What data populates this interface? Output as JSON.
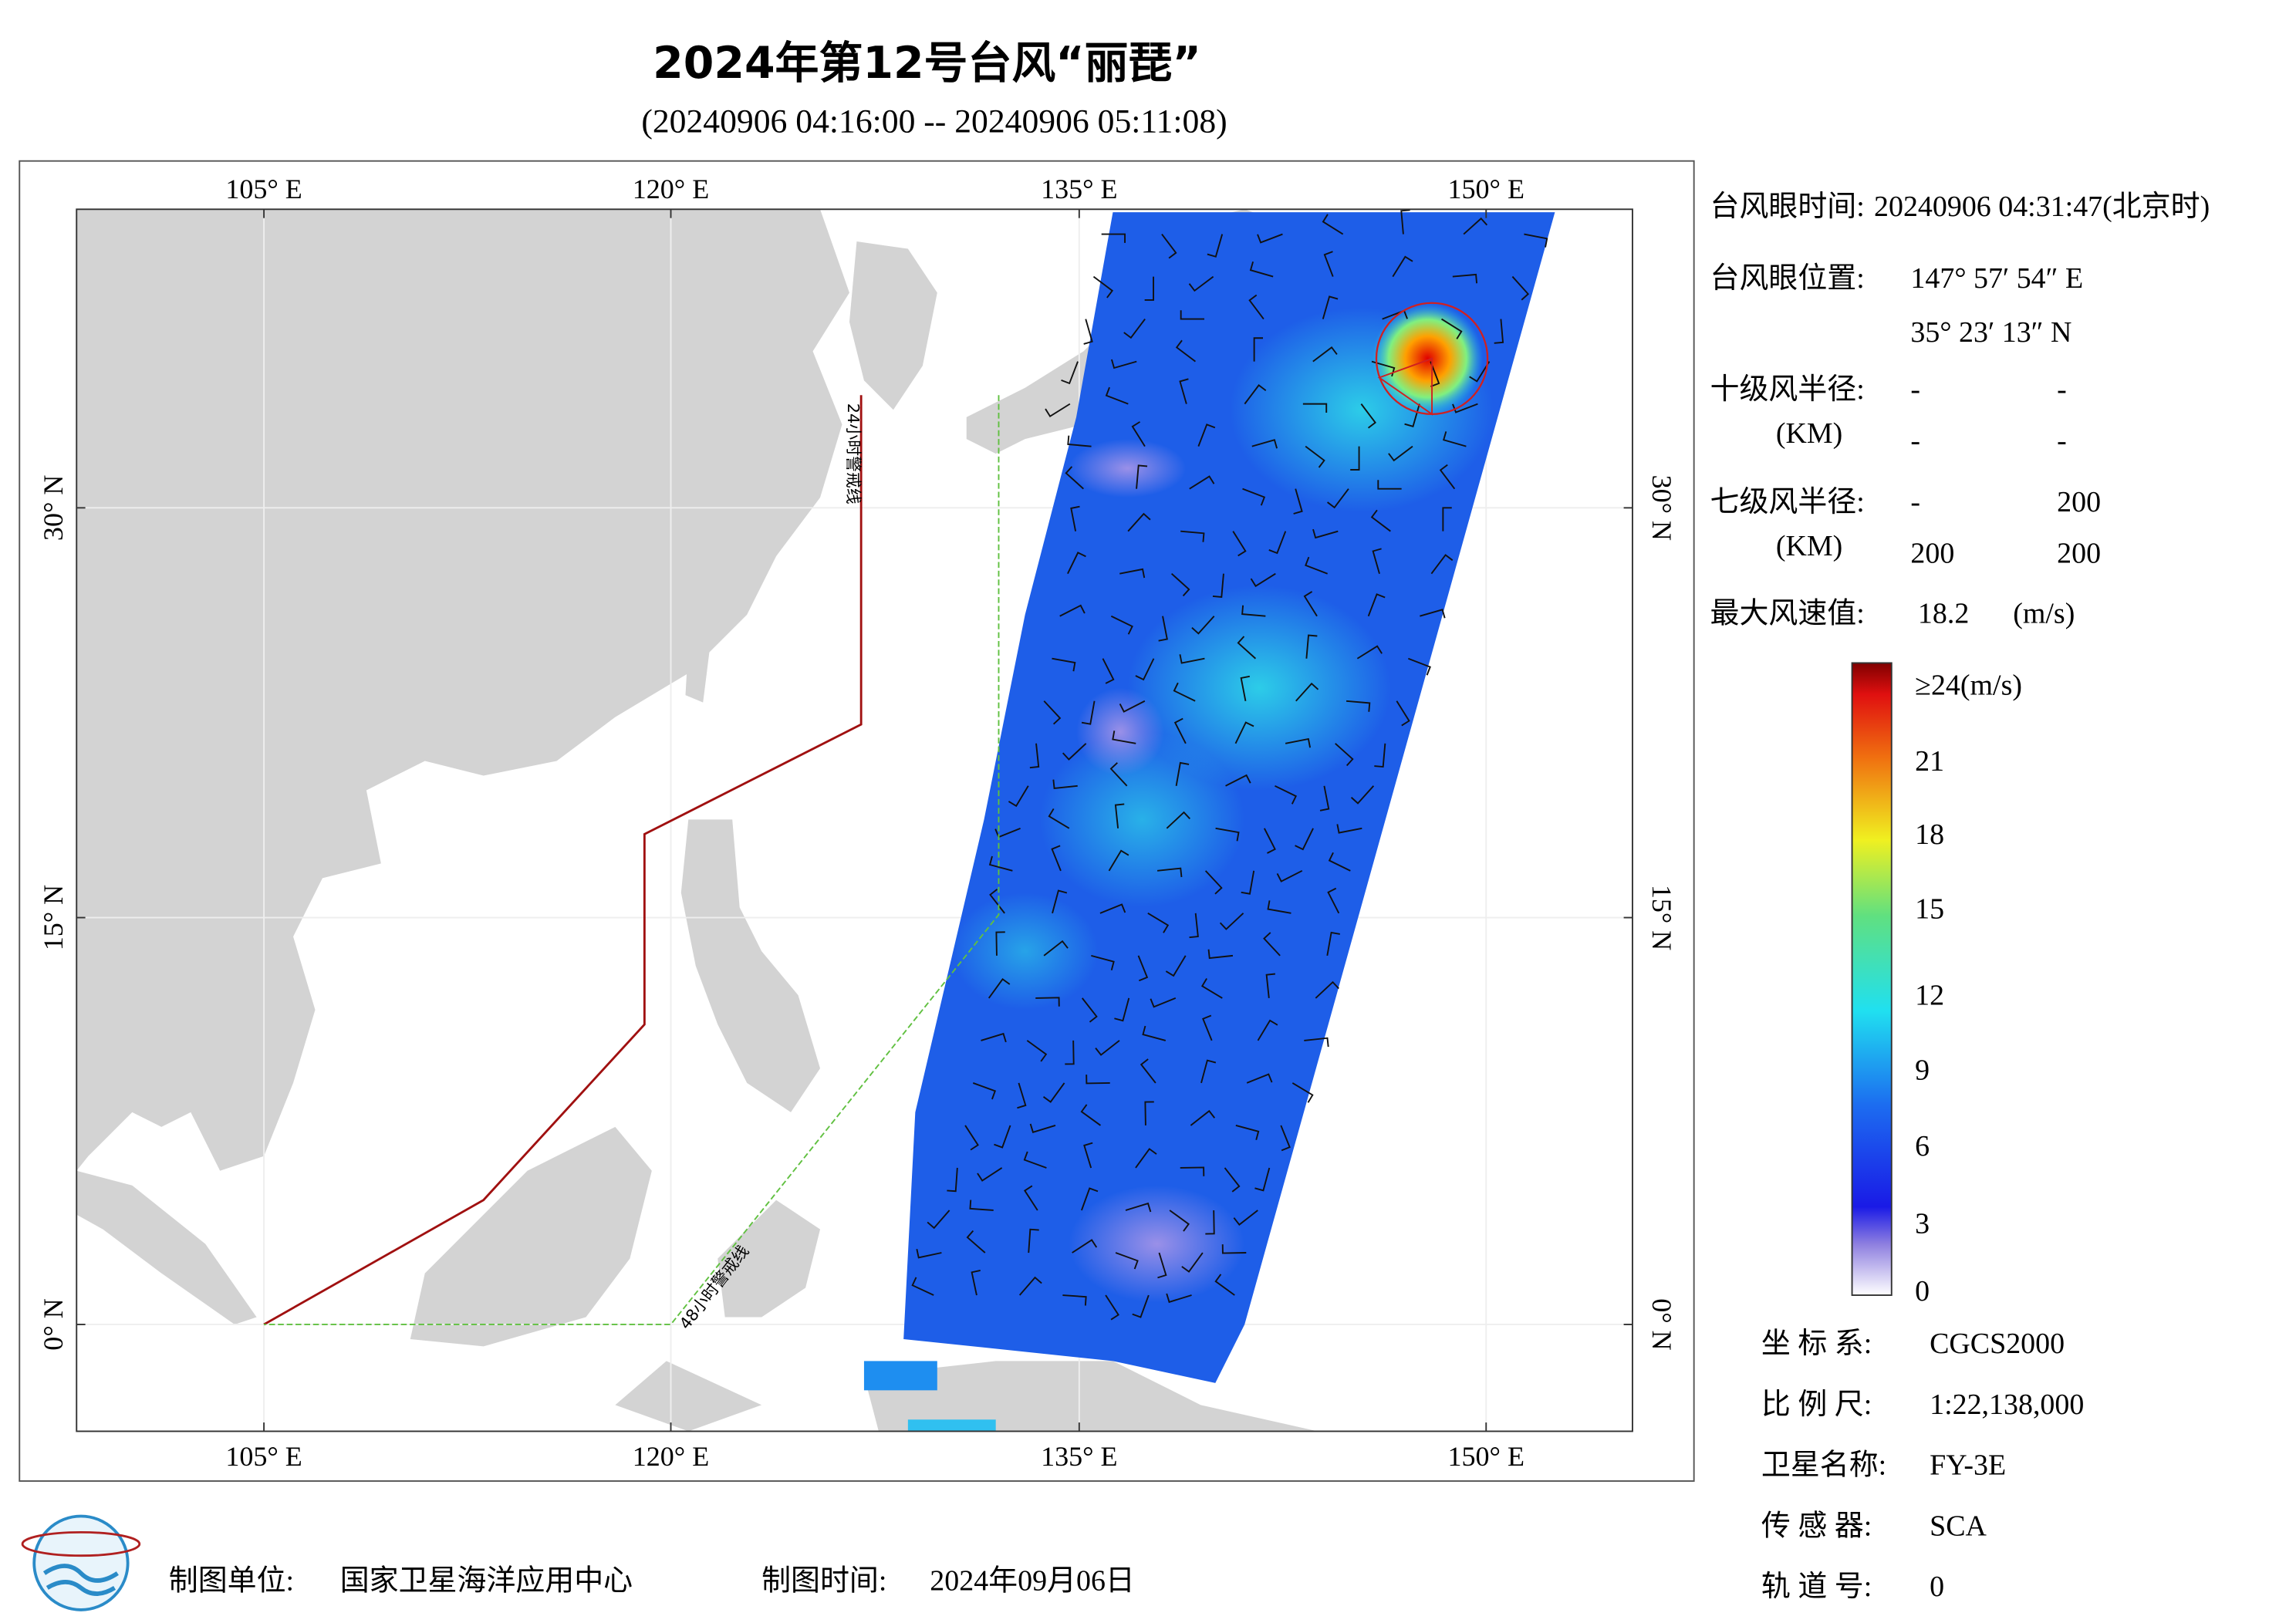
{
  "header": {
    "title": "2024年第12号台风“丽琵”",
    "subtitle": "(20240906 04:16:00 -- 20240906 05:11:08)"
  },
  "map": {
    "lon_labels": [
      "105° E",
      "120° E",
      "135° E",
      "150° E"
    ],
    "lat_labels": [
      "30° N",
      "15° N",
      "0° N"
    ],
    "warning_lines": [
      "24小时警戒线",
      "48小时警戒线"
    ]
  },
  "info": {
    "eye_time": {
      "label": "台风眼时间:",
      "value": "20240906 04:31:47(北京时)"
    },
    "eye_position": {
      "label": "台风眼位置:",
      "lon": "147° 57′ 54″ E",
      "lat": "35° 23′ 13″ N"
    },
    "r10": {
      "label": "十级风半径:",
      "unit": "(KM)",
      "values": [
        "-",
        "-",
        "-",
        "-"
      ]
    },
    "r7": {
      "label": "七级风半径:",
      "unit": "(KM)",
      "values": [
        "-",
        "200",
        "200",
        "200"
      ]
    },
    "max_wind": {
      "label": "最大风速值:",
      "value": "18.2",
      "unit": "(m/s)"
    }
  },
  "colorbar": {
    "labels": [
      "≥24(m/s)",
      "21",
      "18",
      "15",
      "12",
      "9",
      "6",
      "3",
      "0"
    ]
  },
  "meta": [
    {
      "label": "坐 标 系:",
      "value": "CGCS2000"
    },
    {
      "label": "比 例 尺:",
      "value": "1:22,138,000"
    },
    {
      "label": "卫星名称:",
      "value": "FY-3E"
    },
    {
      "label": "传 感 器:",
      "value": "SCA"
    },
    {
      "label": "轨 道 号:",
      "value": "0"
    }
  ],
  "footer": {
    "unit_label": "制图单位:",
    "unit": "国家卫星海洋应用中心",
    "time_label": "制图时间:",
    "time": "2024年09月06日"
  }
}
